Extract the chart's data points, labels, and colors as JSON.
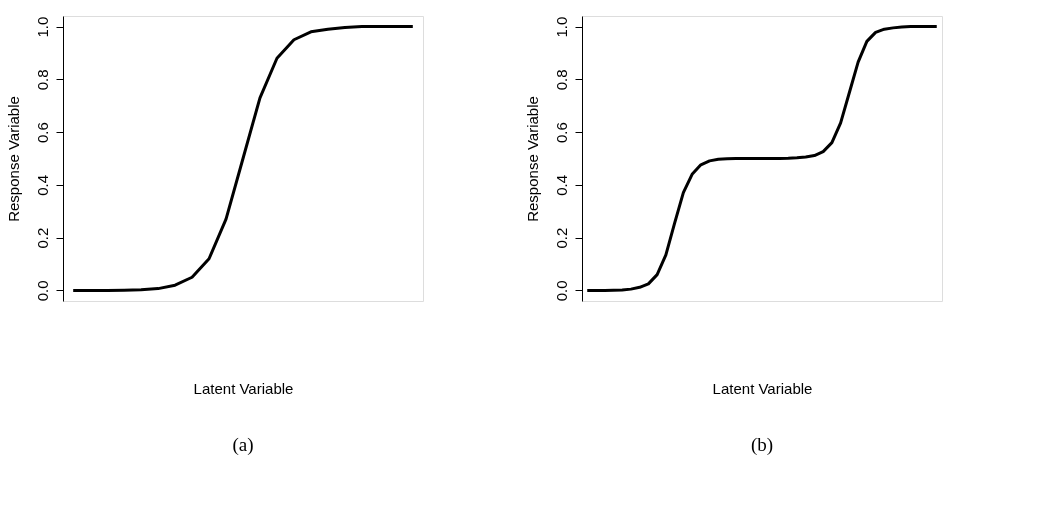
{
  "chart_data": [
    {
      "type": "line",
      "xlabel": "Latent Variable",
      "ylabel": "Response Variable",
      "annotations": [
        "(a)"
      ],
      "tick_labels": "y",
      "color": "#000000",
      "ylim": [
        -0.04,
        1.04
      ],
      "yticks": [
        {
          "value": 0,
          "label": "0.0"
        },
        {
          "value": 0.2,
          "label": "0.2"
        },
        {
          "value": 0.4,
          "label": "0.4"
        },
        {
          "value": 0.6,
          "label": "0.6"
        },
        {
          "value": 0.8,
          "label": "0.8"
        },
        {
          "value": 1,
          "label": "1.0"
        }
      ],
      "categories": [
        null,
        null,
        null,
        null,
        null,
        null,
        null,
        null,
        null,
        null,
        null,
        null,
        null,
        null,
        null,
        null,
        null,
        null,
        null,
        null,
        null
      ],
      "values": [
        0,
        0,
        0,
        0.001,
        0.003,
        0.007,
        0.02,
        0.05,
        0.12,
        0.27,
        0.5,
        0.73,
        0.88,
        0.95,
        0.98,
        0.99,
        0.996,
        1,
        1,
        1,
        1
      ]
    },
    {
      "type": "line",
      "xlabel": "Latent Variable",
      "ylabel": "Response Variable",
      "annotations": [
        "(b)"
      ],
      "tick_labels": "y",
      "color": "#000000",
      "ylim": [
        -0.04,
        1.04
      ],
      "yticks": [
        {
          "value": 0,
          "label": "0.0"
        },
        {
          "value": 0.2,
          "label": "0.2"
        },
        {
          "value": 0.4,
          "label": "0.4"
        },
        {
          "value": 0.6,
          "label": "0.6"
        },
        {
          "value": 0.8,
          "label": "0.8"
        },
        {
          "value": 1,
          "label": "1.0"
        }
      ],
      "categories": [
        null,
        null,
        null,
        null,
        null,
        null,
        null,
        null,
        null,
        null,
        null,
        null,
        null,
        null,
        null,
        null,
        null,
        null,
        null,
        null,
        null,
        null,
        null,
        null,
        null,
        null,
        null,
        null,
        null,
        null,
        null,
        null,
        null,
        null,
        null,
        null,
        null,
        null,
        null,
        null,
        null
      ],
      "values": [
        0,
        0,
        0,
        0.001,
        0.002,
        0.005,
        0.012,
        0.025,
        0.06,
        0.135,
        0.255,
        0.371,
        0.44,
        0.476,
        0.491,
        0.497,
        0.499,
        0.5,
        0.5,
        0.5,
        0.5,
        0.5,
        0.5,
        0.501,
        0.503,
        0.506,
        0.511,
        0.526,
        0.56,
        0.635,
        0.75,
        0.865,
        0.944,
        0.978,
        0.99,
        0.995,
        0.998,
        1,
        1,
        1,
        1
      ]
    }
  ]
}
